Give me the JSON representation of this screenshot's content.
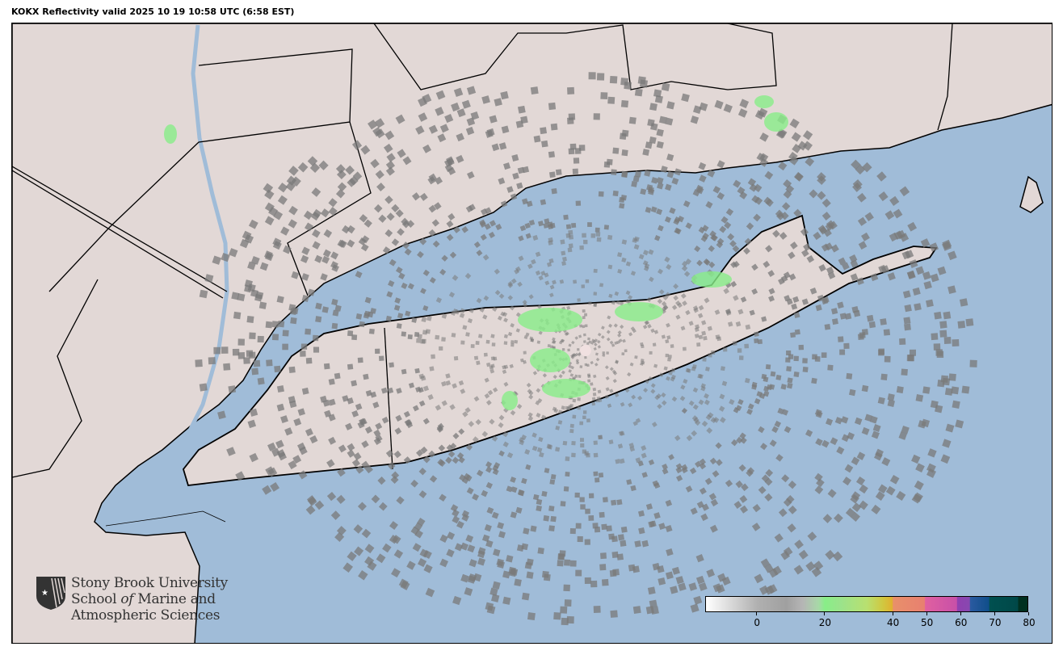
{
  "title": "KOKX Reflectivity valid 2025 10 19 10:58 UTC (6:58 EST)",
  "colors": {
    "ocean": "#a0bcd8",
    "land": "#e2d8d6",
    "radar_gray": "#7a7a7a",
    "radar_green": "#88ee88",
    "border": "#000000"
  },
  "logo": {
    "line1": "Stony Brook University",
    "line2_a": "School ",
    "line2_b": "of",
    "line2_c": " Marine and",
    "line3": "Atmospheric Sciences",
    "icon": "shield-star-icon"
  },
  "colorbar": {
    "range": [
      -15,
      80
    ],
    "ticks": [
      {
        "value": 0,
        "label": "0"
      },
      {
        "value": 20,
        "label": "20"
      },
      {
        "value": 40,
        "label": "40"
      },
      {
        "value": 50,
        "label": "50"
      },
      {
        "value": 60,
        "label": "60"
      },
      {
        "value": 70,
        "label": "70"
      },
      {
        "value": 80,
        "label": "80"
      }
    ]
  }
}
